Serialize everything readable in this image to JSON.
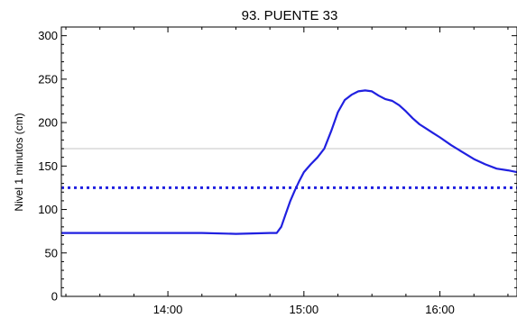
{
  "chart_data": {
    "type": "line",
    "title": "93. PUENTE 33",
    "ylabel": "Nivel 1 minutos (cm)",
    "xlabel": "",
    "x_range": [
      "13:13",
      "16:34"
    ],
    "ylim": [
      0,
      310
    ],
    "y_ticks": [
      0,
      50,
      100,
      150,
      200,
      250,
      300
    ],
    "x_ticks": [
      "14:00",
      "15:00",
      "16:00"
    ],
    "reference_lines": [
      {
        "y": 170,
        "style": "solid",
        "color": "#d0d0d0"
      },
      {
        "y": 125,
        "style": "dotted",
        "color": "#2020e0"
      }
    ],
    "series": [
      {
        "color": "#2020e0",
        "points": [
          [
            "13:13",
            73
          ],
          [
            "13:30",
            73
          ],
          [
            "13:45",
            73
          ],
          [
            "14:00",
            73
          ],
          [
            "14:15",
            73
          ],
          [
            "14:30",
            72
          ],
          [
            "14:45",
            73
          ],
          [
            "14:48",
            73
          ],
          [
            "14:50",
            80
          ],
          [
            "14:52",
            95
          ],
          [
            "14:54",
            110
          ],
          [
            "14:56",
            122
          ],
          [
            "14:58",
            133
          ],
          [
            "15:00",
            143
          ],
          [
            "15:03",
            152
          ],
          [
            "15:06",
            160
          ],
          [
            "15:09",
            170
          ],
          [
            "15:12",
            190
          ],
          [
            "15:15",
            212
          ],
          [
            "15:18",
            226
          ],
          [
            "15:21",
            232
          ],
          [
            "15:24",
            236
          ],
          [
            "15:27",
            237
          ],
          [
            "15:30",
            236
          ],
          [
            "15:33",
            231
          ],
          [
            "15:36",
            227
          ],
          [
            "15:39",
            225
          ],
          [
            "15:42",
            220
          ],
          [
            "15:45",
            213
          ],
          [
            "15:48",
            205
          ],
          [
            "15:51",
            198
          ],
          [
            "15:54",
            193
          ],
          [
            "15:57",
            188
          ],
          [
            "16:00",
            183
          ],
          [
            "16:05",
            174
          ],
          [
            "16:10",
            166
          ],
          [
            "16:15",
            158
          ],
          [
            "16:20",
            152
          ],
          [
            "16:25",
            147
          ],
          [
            "16:30",
            145
          ],
          [
            "16:34",
            143
          ]
        ]
      }
    ]
  }
}
